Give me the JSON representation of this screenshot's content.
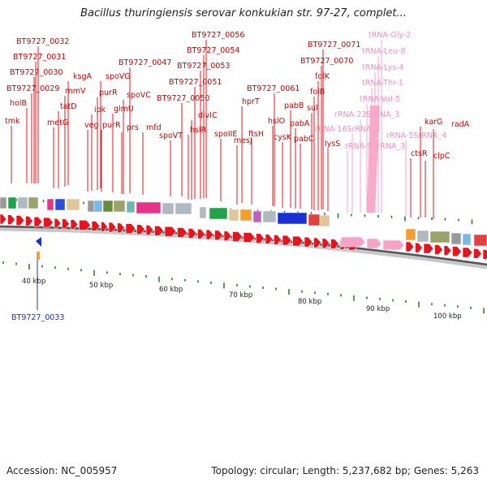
{
  "title": "Bacillus thuringiensis serovar konkukian str. 97-27, complet...",
  "footer": {
    "accession": "Accession: NC_005957",
    "topology": "Topology: circular; Length: 5,237,682 bp; Genes: 5,263"
  },
  "colors": {
    "cds": "#e8141d",
    "rna": "#f7a3c7",
    "gene_label": "#cc0000",
    "rna_label": "#f08cbd",
    "highlight": "#1a2fd6",
    "backbone": "#555555",
    "tick_marks": "#1a7a1a"
  },
  "genes": [
    {
      "label": "BT9727_0032",
      "kind": "cds"
    },
    {
      "label": "BT9727_0031",
      "kind": "cds"
    },
    {
      "label": "BT9727_0030",
      "kind": "cds"
    },
    {
      "label": "BT9727_0029",
      "kind": "cds"
    },
    {
      "label": "holB",
      "kind": "cds"
    },
    {
      "label": "tmk",
      "kind": "cds"
    },
    {
      "label": "ksgA",
      "kind": "cds"
    },
    {
      "label": "rnmV",
      "kind": "cds"
    },
    {
      "label": "tatD",
      "kind": "cds"
    },
    {
      "label": "metG",
      "kind": "cds"
    },
    {
      "label": "spoVG",
      "kind": "cds"
    },
    {
      "label": "purR",
      "kind": "cds"
    },
    {
      "label": "ipk",
      "kind": "cds"
    },
    {
      "label": "veg",
      "kind": "cds"
    },
    {
      "label": "purR",
      "kind": "cds"
    },
    {
      "label": "glmU",
      "kind": "cds"
    },
    {
      "label": "BT9727_0047",
      "kind": "cds"
    },
    {
      "label": "spoVC",
      "kind": "cds"
    },
    {
      "label": "prs",
      "kind": "cds"
    },
    {
      "label": "mfd",
      "kind": "cds"
    },
    {
      "label": "spoVT",
      "kind": "cds"
    },
    {
      "label": "BT9727_0050",
      "kind": "cds"
    },
    {
      "label": "BT9727_0056",
      "kind": "cds"
    },
    {
      "label": "BT9727_0054",
      "kind": "cds"
    },
    {
      "label": "BT9727_0053",
      "kind": "cds"
    },
    {
      "label": "BT9727_0051",
      "kind": "cds"
    },
    {
      "label": "divIC",
      "kind": "cds"
    },
    {
      "label": "hslR",
      "kind": "cds"
    },
    {
      "label": "spoIIE",
      "kind": "cds"
    },
    {
      "label": "hprT",
      "kind": "cds"
    },
    {
      "label": "mesJ",
      "kind": "cds"
    },
    {
      "label": "ftsH",
      "kind": "cds"
    },
    {
      "label": "BT9727_0061",
      "kind": "cds"
    },
    {
      "label": "hslO",
      "kind": "cds"
    },
    {
      "label": "cysK",
      "kind": "cds"
    },
    {
      "label": "pabB",
      "kind": "cds"
    },
    {
      "label": "pabA",
      "kind": "cds"
    },
    {
      "label": "pabC",
      "kind": "cds"
    },
    {
      "label": "sul",
      "kind": "cds"
    },
    {
      "label": "BT9727_0071",
      "kind": "cds"
    },
    {
      "label": "BT9727_0070",
      "kind": "cds"
    },
    {
      "label": "folK",
      "kind": "cds"
    },
    {
      "label": "folB",
      "kind": "cds"
    },
    {
      "label": "lysS",
      "kind": "cds"
    },
    {
      "label": "tRNA-Gly-2",
      "kind": "rna"
    },
    {
      "label": "tRNA-Leu-8",
      "kind": "rna"
    },
    {
      "label": "tRNA-Lys-4",
      "kind": "rna"
    },
    {
      "label": "tRNA-Thr-1",
      "kind": "rna"
    },
    {
      "label": "tRNA-Val-5",
      "kind": "rna"
    },
    {
      "label": "rRNA-23SrRNA_3",
      "kind": "rna"
    },
    {
      "label": "rRNA-16SrRNA_3",
      "kind": "rna"
    },
    {
      "label": "rRNA-5SrRNA_3",
      "kind": "rna"
    },
    {
      "label": "rRNA-5SrRNA_4",
      "kind": "rna"
    },
    {
      "label": "karG",
      "kind": "cds"
    },
    {
      "label": "radA",
      "kind": "cds"
    },
    {
      "label": "ctsR",
      "kind": "cds"
    },
    {
      "label": "clpC",
      "kind": "cds"
    }
  ],
  "highlighted_gene": {
    "label": "BT9727_0033"
  },
  "scale_ticks": [
    "40 kbp",
    "50 kbp",
    "60 kbp",
    "70 kbp",
    "80 kbp",
    "90 kbp",
    "100 kbp"
  ]
}
